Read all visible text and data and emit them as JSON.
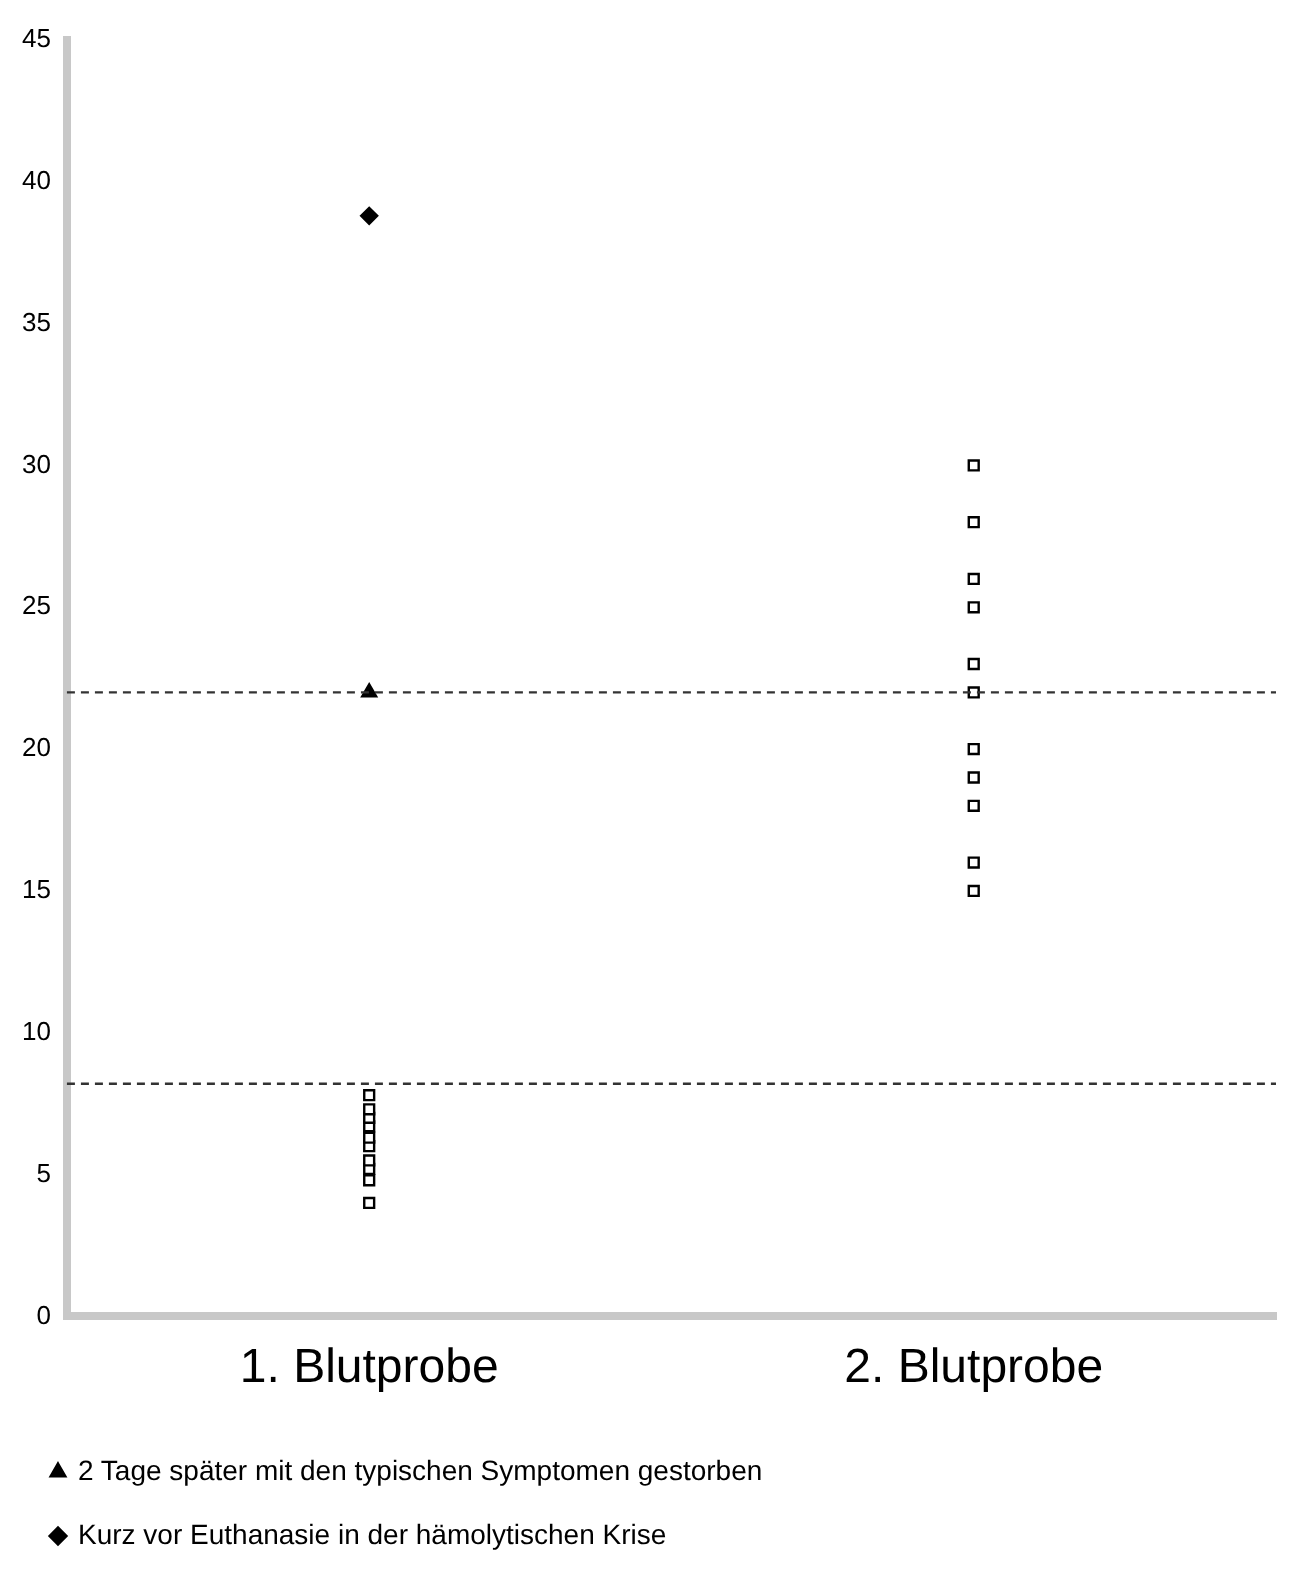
{
  "chart_data": {
    "type": "scatter",
    "categories": [
      "1. Blutprobe",
      "2. Blutprobe"
    ],
    "series": [
      {
        "color": "#000000",
        "marker": "square",
        "x": [
          "1. Blutprobe",
          "1. Blutprobe",
          "1. Blutprobe",
          "1. Blutprobe",
          "1. Blutprobe",
          "1. Blutprobe",
          "1. Blutprobe",
          "1. Blutprobe",
          "1. Blutprobe",
          "1. Blutprobe",
          "2. Blutprobe",
          "2. Blutprobe",
          "2. Blutprobe",
          "2. Blutprobe",
          "2. Blutprobe",
          "2. Blutprobe",
          "2. Blutprobe",
          "2. Blutprobe",
          "2. Blutprobe",
          "2. Blutprobe",
          "2. Blutprobe"
        ],
        "values": [
          4,
          4.8,
          5.2,
          5.5,
          6,
          6.3,
          6.7,
          7,
          7.3,
          7.8,
          30,
          28,
          26,
          25,
          23,
          22,
          20,
          19,
          18,
          16,
          15
        ]
      },
      {
        "name": "2 Tage später mit den typischen Symptomen gestorben",
        "color": "#000000",
        "marker": "triangle",
        "x": [
          "1. Blutprobe"
        ],
        "values": [
          22
        ]
      },
      {
        "name": "Kurz vor Euthanasie in der hämolytischen Krise",
        "color": "#000000",
        "marker": "diamond",
        "x": [
          "1. Blutprobe"
        ],
        "values": [
          38.8
        ]
      }
    ],
    "ylim": [
      0,
      45
    ],
    "yticks": [
      0,
      5,
      10,
      15,
      20,
      25,
      30,
      35,
      40,
      45
    ],
    "grid": false,
    "legend": "bottom",
    "ref_lines": [
      {
        "axis": "y",
        "value": 22,
        "color": "#333333",
        "line_style": "dashed"
      },
      {
        "axis": "y",
        "value": 8.2,
        "color": "#333333",
        "line_style": "dashed"
      }
    ]
  }
}
